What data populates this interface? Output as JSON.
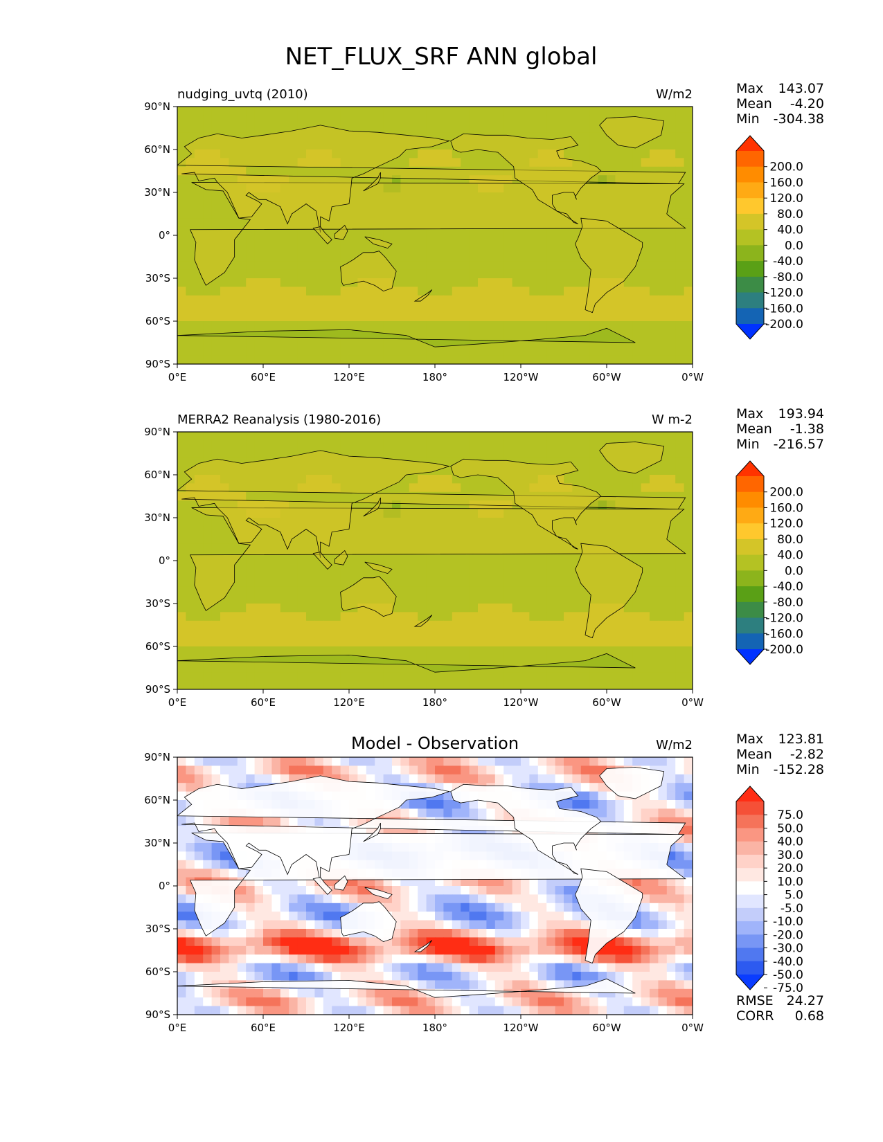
{
  "figure_title": "NET_FLUX_SRF ANN global",
  "chart_data": [
    {
      "type": "heatmap",
      "title": "nudging_uvtq (2010)",
      "units": "W/m2",
      "xticks": [
        "0°E",
        "60°E",
        "120°E",
        "180°",
        "120°W",
        "60°W",
        "0°W"
      ],
      "yticks": [
        "90°N",
        "60°N",
        "30°N",
        "0°",
        "30°S",
        "60°S",
        "90°S"
      ],
      "xlim": [
        0,
        360
      ],
      "ylim": [
        -90,
        90
      ],
      "stats": {
        "max_label": "Max",
        "max": "143.07",
        "mean_label": "Mean",
        "mean": "-4.20",
        "min_label": "Min",
        "min": "-304.38"
      },
      "colorbar": {
        "labels": [
          "200.0",
          "160.0",
          "120.0",
          "80.0",
          "40.0",
          "0.0",
          "-40.0",
          "-80.0",
          "-120.0",
          "-160.0",
          "-200.0"
        ],
        "colors": [
          "#ff3300",
          "#ff6600",
          "#ff8c00",
          "#ffaa14",
          "#ffc82d",
          "#d4c528",
          "#b4c223",
          "#8cb41c",
          "#5aa016",
          "#3c8c46",
          "#2d7f7f",
          "#1464b4",
          "#0032ff"
        ]
      }
    },
    {
      "type": "heatmap",
      "title": "MERRA2 Reanalysis (1980-2016)",
      "units": "W m-2",
      "xticks": [
        "0°E",
        "60°E",
        "120°E",
        "180°",
        "120°W",
        "60°W",
        "0°W"
      ],
      "yticks": [
        "90°N",
        "60°N",
        "30°N",
        "0°",
        "30°S",
        "60°S",
        "90°S"
      ],
      "xlim": [
        0,
        360
      ],
      "ylim": [
        -90,
        90
      ],
      "stats": {
        "max_label": "Max",
        "max": "193.94",
        "mean_label": "Mean",
        "mean": "-1.38",
        "min_label": "Min",
        "min": "-216.57"
      },
      "colorbar": {
        "labels": [
          "200.0",
          "160.0",
          "120.0",
          "80.0",
          "40.0",
          "0.0",
          "-40.0",
          "-80.0",
          "-120.0",
          "-160.0",
          "-200.0"
        ],
        "colors": [
          "#ff3300",
          "#ff6600",
          "#ff8c00",
          "#ffaa14",
          "#ffc82d",
          "#d4c528",
          "#b4c223",
          "#8cb41c",
          "#5aa016",
          "#3c8c46",
          "#2d7f7f",
          "#1464b4",
          "#0032ff"
        ]
      }
    },
    {
      "type": "heatmap",
      "title": "Model - Observation",
      "units": "W/m2",
      "xticks": [
        "0°E",
        "60°E",
        "120°E",
        "180°",
        "120°W",
        "60°W",
        "0°W"
      ],
      "yticks": [
        "90°N",
        "60°N",
        "30°N",
        "0°",
        "30°S",
        "60°S",
        "90°S"
      ],
      "xlim": [
        0,
        360
      ],
      "ylim": [
        -90,
        90
      ],
      "stats": {
        "max_label": "Max",
        "max": "123.81",
        "mean_label": "Mean",
        "mean": "-2.82",
        "min_label": "Min",
        "min": "-152.28",
        "rmse_label": "RMSE",
        "rmse": "24.27",
        "corr_label": "CORR",
        "corr": "0.68"
      },
      "colorbar": {
        "labels": [
          "75.0",
          "50.0",
          "40.0",
          "30.0",
          "20.0",
          "10.0",
          "5.0",
          "-5.0",
          "-10.0",
          "-20.0",
          "-30.0",
          "-40.0",
          "-50.0",
          "-75.0"
        ],
        "colors": [
          "#ff2d14",
          "#f55037",
          "#f5735a",
          "#fa9682",
          "#fab4a5",
          "#ffd2c8",
          "#ffe8e2",
          "#ffffff",
          "#e1e6ff",
          "#c3cdfa",
          "#a0b4fa",
          "#7896f5",
          "#5078f0",
          "#2d5af0",
          "#0a3cff"
        ]
      }
    }
  ]
}
